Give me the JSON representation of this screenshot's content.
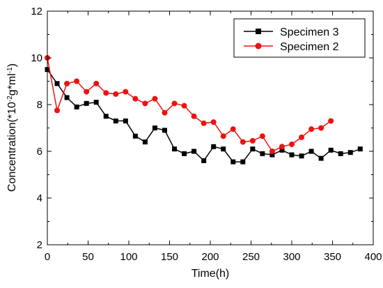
{
  "chart_data": {
    "type": "line",
    "xlabel": "Time(h)",
    "ylabel_parts": {
      "pre": "Concentration(*10",
      "sup1": "-2",
      "mid": "g*ml",
      "sup2": "-1",
      "post": ")"
    },
    "xlim": [
      0,
      400
    ],
    "ylim": [
      2,
      12
    ],
    "x_ticks": [
      "0",
      "50",
      "100",
      "150",
      "200",
      "250",
      "300",
      "350",
      "400"
    ],
    "y_ticks": [
      "2",
      "4",
      "6",
      "8",
      "10",
      "12"
    ],
    "grid": false,
    "legend_position": "top-right",
    "series": [
      {
        "name": "Specimen 3",
        "color": "#000000",
        "marker": "square",
        "x": [
          0,
          12,
          24,
          36,
          48,
          60,
          72,
          84,
          96,
          108,
          120,
          132,
          144,
          156,
          168,
          180,
          192,
          204,
          216,
          228,
          240,
          252,
          264,
          276,
          288,
          300,
          312,
          324,
          336,
          348,
          360,
          372,
          384
        ],
        "y": [
          9.5,
          8.9,
          8.3,
          7.9,
          8.05,
          8.1,
          7.5,
          7.3,
          7.3,
          6.65,
          6.4,
          7.0,
          6.9,
          6.1,
          5.9,
          6.0,
          5.6,
          6.2,
          6.1,
          5.55,
          5.55,
          6.1,
          5.9,
          5.85,
          6.05,
          5.85,
          5.8,
          6.0,
          5.7,
          6.05,
          5.9,
          5.95,
          6.1
        ]
      },
      {
        "name": "Specimen 2",
        "color": "#ee1111",
        "marker": "circle",
        "x": [
          0,
          12,
          24,
          36,
          48,
          60,
          72,
          84,
          96,
          108,
          120,
          132,
          144,
          156,
          168,
          180,
          192,
          204,
          216,
          228,
          240,
          252,
          264,
          276,
          288,
          300,
          312,
          324,
          336,
          348
        ],
        "y": [
          10.0,
          7.75,
          8.9,
          9.0,
          8.55,
          8.9,
          8.5,
          8.45,
          8.55,
          8.25,
          8.05,
          8.25,
          7.65,
          8.05,
          7.95,
          7.5,
          7.2,
          7.25,
          6.65,
          6.95,
          6.4,
          6.45,
          6.65,
          6.0,
          6.2,
          6.3,
          6.6,
          6.95,
          7.0,
          7.3
        ]
      }
    ]
  }
}
